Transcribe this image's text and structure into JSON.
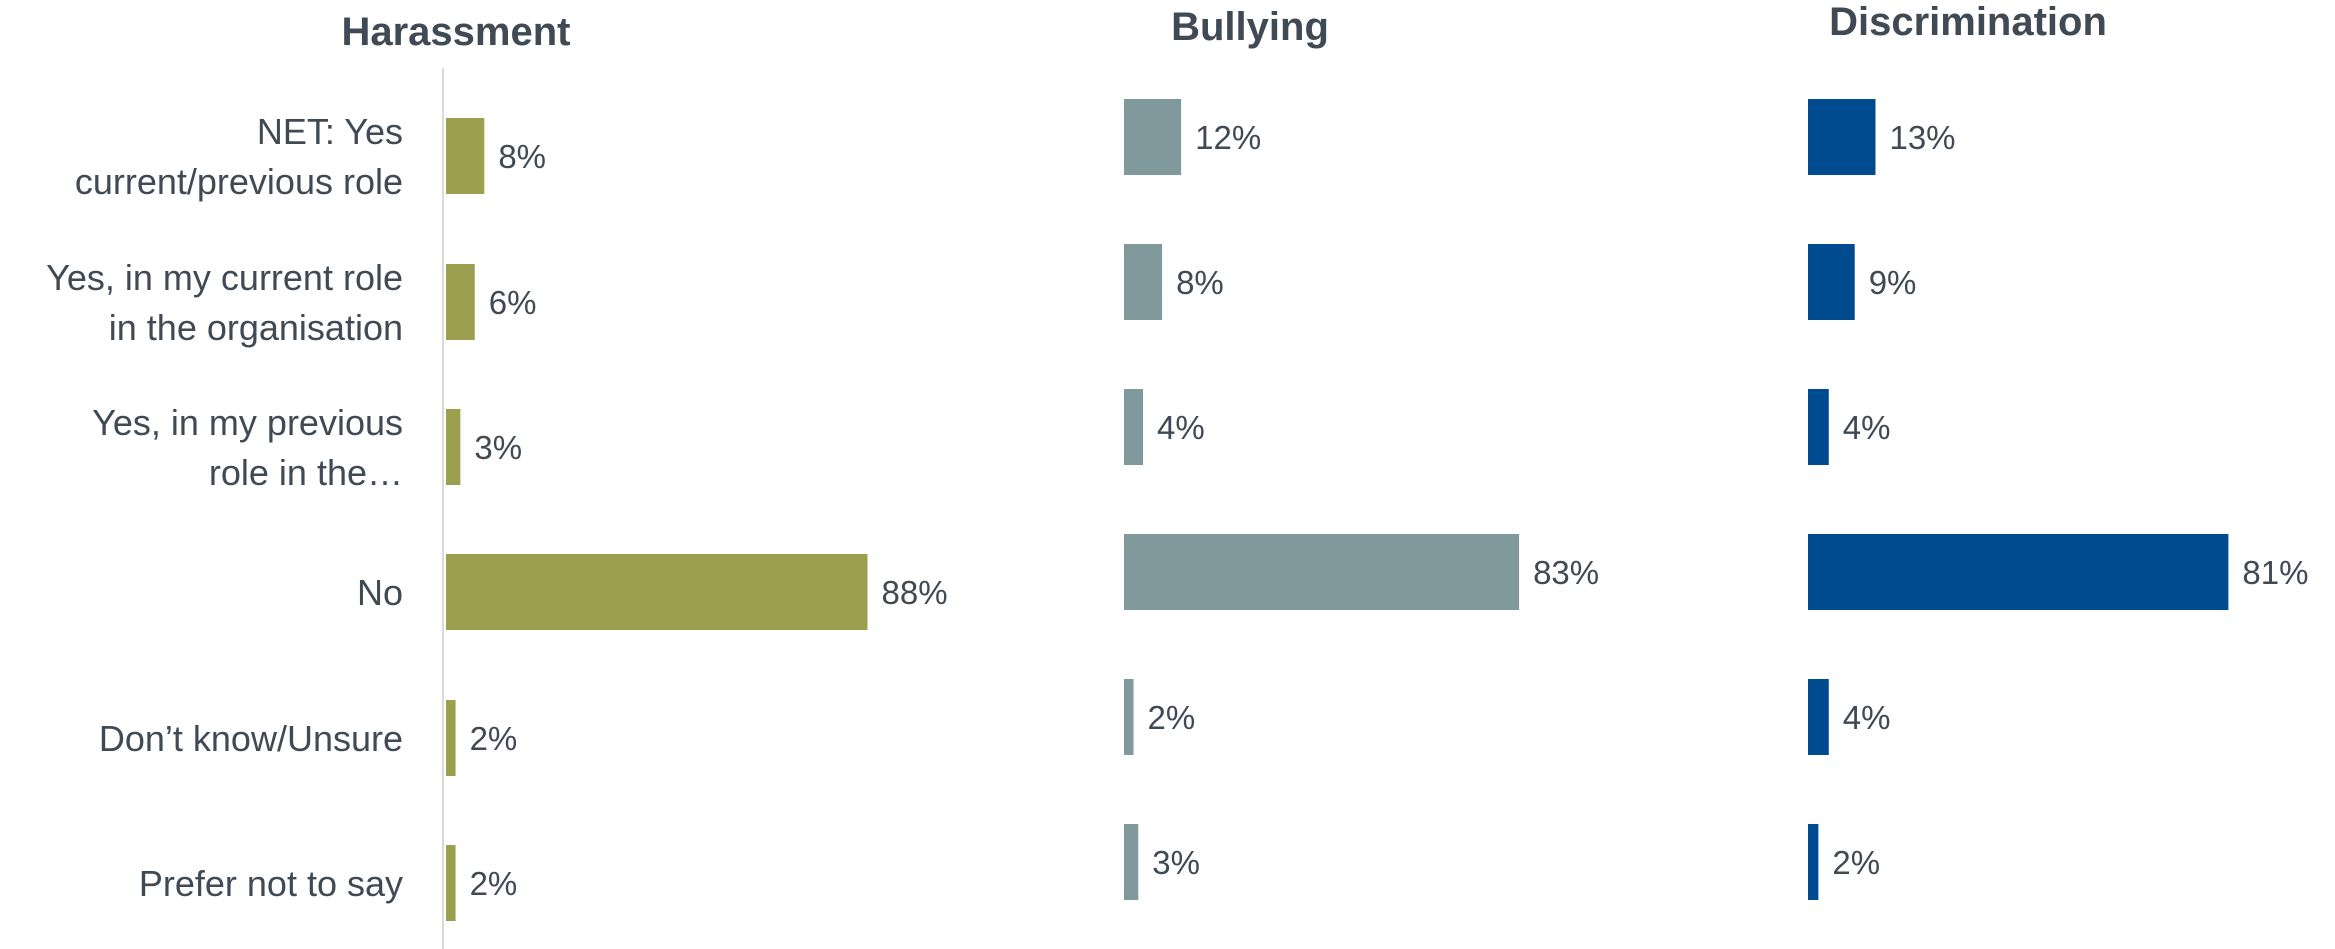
{
  "chart_data": [
    {
      "type": "bar",
      "orientation": "horizontal",
      "title": "Harassment",
      "categories": [
        [
          "NET: Yes",
          "current/previous role"
        ],
        [
          "Yes, in my current role",
          "in the organisation"
        ],
        [
          "Yes, in my previous",
          "role in the…"
        ],
        [
          "No"
        ],
        [
          "Don’t know/Unsure"
        ],
        [
          "Prefer not to say"
        ]
      ],
      "values": [
        8,
        6,
        3,
        88,
        2,
        2
      ],
      "value_labels": [
        "8%",
        "6%",
        "3%",
        "88%",
        "2%",
        "2%"
      ],
      "unit": "%",
      "color": "#9c9f4e",
      "xlim": [
        0,
        100
      ]
    },
    {
      "type": "bar",
      "orientation": "horizontal",
      "title": "Bullying",
      "values": [
        12,
        8,
        4,
        83,
        2,
        3
      ],
      "value_labels": [
        "12%",
        "8%",
        "4%",
        "83%",
        "2%",
        "3%"
      ],
      "unit": "%",
      "color": "#7f999d",
      "xlim": [
        0,
        100
      ]
    },
    {
      "type": "bar",
      "orientation": "horizontal",
      "title": "Discrimination",
      "values": [
        13,
        9,
        4,
        81,
        4,
        2
      ],
      "value_labels": [
        "13%",
        "9%",
        "4%",
        "81%",
        "4%",
        "2%"
      ],
      "unit": "%",
      "color": "#004a8f",
      "xlim": [
        0,
        100
      ]
    }
  ]
}
